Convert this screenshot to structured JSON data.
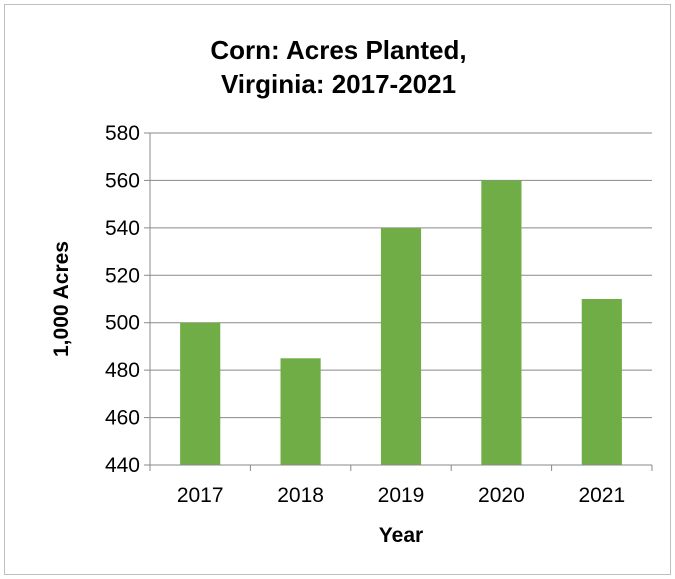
{
  "chart_data": {
    "type": "bar",
    "title_line1": "Corn: Acres Planted,",
    "title_line2": "Virginia: 2017-2021",
    "xlabel": "Year",
    "ylabel": "1,000 Acres",
    "categories": [
      "2017",
      "2018",
      "2019",
      "2020",
      "2021"
    ],
    "values": [
      500,
      485,
      540,
      560,
      510
    ],
    "ylim": [
      440,
      580
    ],
    "yticks": [
      440,
      460,
      480,
      500,
      520,
      540,
      560,
      580
    ],
    "grid": true,
    "legend": "none",
    "bar_color": "#70ad47",
    "grid_color": "#898989"
  }
}
